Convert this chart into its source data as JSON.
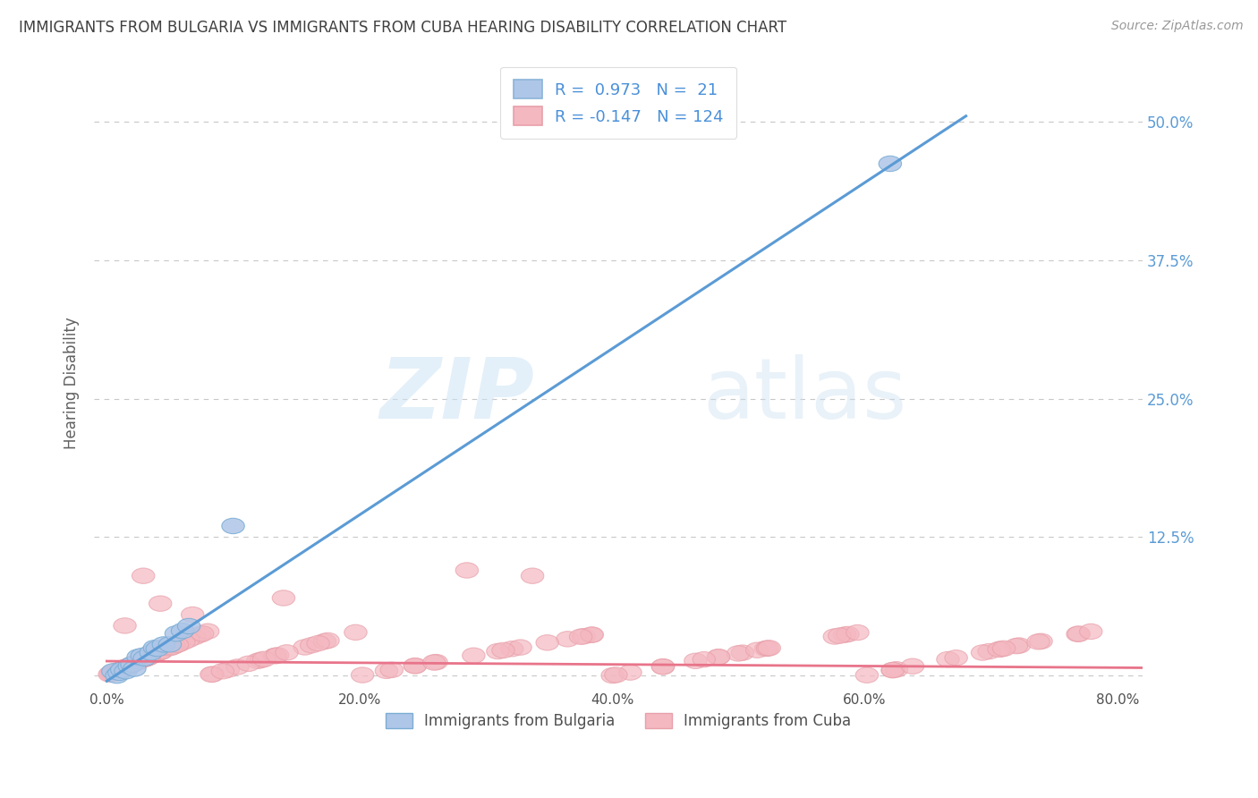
{
  "title": "IMMIGRANTS FROM BULGARIA VS IMMIGRANTS FROM CUBA HEARING DISABILITY CORRELATION CHART",
  "source": "Source: ZipAtlas.com",
  "xlabel_ticks": [
    "0.0%",
    "20.0%",
    "40.0%",
    "60.0%",
    "80.0%"
  ],
  "xlabel_vals": [
    0.0,
    0.2,
    0.4,
    0.6,
    0.8
  ],
  "ylabel_ticks": [
    "50.0%",
    "37.5%",
    "25.0%",
    "12.5%",
    ""
  ],
  "ylabel_vals": [
    0.5,
    0.375,
    0.25,
    0.125,
    0.0
  ],
  "xlim": [
    -0.01,
    0.82
  ],
  "ylim": [
    -0.012,
    0.54
  ],
  "bg_color": "#ffffff",
  "grid_color": "#c8c8c8",
  "watermark_zip": "ZIP",
  "watermark_atlas": "atlas",
  "legend": {
    "bulgaria_color": "#aec6e8",
    "cuba_color": "#f4b8c1",
    "bulgaria_label": "Immigrants from Bulgaria",
    "cuba_label": "Immigrants from Cuba",
    "R_bulgaria": "0.973",
    "N_bulgaria": "21",
    "R_cuba": "-0.147",
    "N_cuba": "124"
  },
  "trend_bulgaria_color": "#5b9bd5",
  "trend_cuba_color": "#e8748a",
  "scatter_bulgaria_color": "#aec6e8",
  "scatter_cuba_color": "#f4b8c1",
  "scatter_bulgaria_edge": "#7aadd4",
  "scatter_cuba_edge": "#e8a0aa",
  "title_color": "#404040",
  "axis_label_color": "#606060",
  "tick_color_right": "#5b9bd5",
  "title_fontsize": 12,
  "ylabel_label": "Hearing Disability",
  "bulg_trend_x0": 0.0,
  "bulg_trend_y0": -0.005,
  "bulg_trend_x1": 0.68,
  "bulg_trend_y1": 0.505,
  "cuba_trend_x0": 0.0,
  "cuba_trend_y0": 0.013,
  "cuba_trend_x1": 0.82,
  "cuba_trend_y1": 0.007
}
